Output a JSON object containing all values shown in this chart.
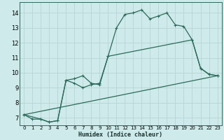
{
  "title": "",
  "xlabel": "Humidex (Indice chaleur)",
  "bg_color": "#ceeaea",
  "grid_color": "#b8d4d4",
  "line_color": "#2a6b5a",
  "xlim": [
    -0.5,
    23.5
  ],
  "ylim": [
    6.5,
    14.7
  ],
  "xticks": [
    0,
    1,
    2,
    3,
    4,
    5,
    6,
    7,
    8,
    9,
    10,
    11,
    12,
    13,
    14,
    15,
    16,
    17,
    18,
    19,
    20,
    21,
    22,
    23
  ],
  "yticks": [
    7,
    8,
    9,
    10,
    11,
    12,
    13,
    14
  ],
  "line1_x": [
    0,
    1,
    2,
    3,
    4,
    5,
    6,
    7,
    8,
    9,
    10,
    11,
    12,
    13,
    14,
    15,
    16,
    17,
    18,
    19,
    20,
    21,
    22,
    23
  ],
  "line1_y": [
    7.2,
    6.9,
    6.9,
    6.7,
    6.8,
    9.5,
    9.6,
    9.8,
    9.3,
    9.2,
    11.1,
    13.0,
    13.9,
    14.0,
    14.2,
    13.6,
    13.8,
    14.0,
    13.2,
    13.1,
    12.2,
    10.3,
    9.9,
    9.8
  ],
  "line2_x": [
    0,
    2,
    3,
    4,
    5,
    6,
    7,
    8,
    9,
    10,
    20,
    21,
    22,
    23
  ],
  "line2_y": [
    7.2,
    6.9,
    6.7,
    6.8,
    9.5,
    9.3,
    9.0,
    9.2,
    9.3,
    11.1,
    12.2,
    10.3,
    9.9,
    9.8
  ],
  "line3_x": [
    0,
    23
  ],
  "line3_y": [
    7.2,
    9.8
  ]
}
